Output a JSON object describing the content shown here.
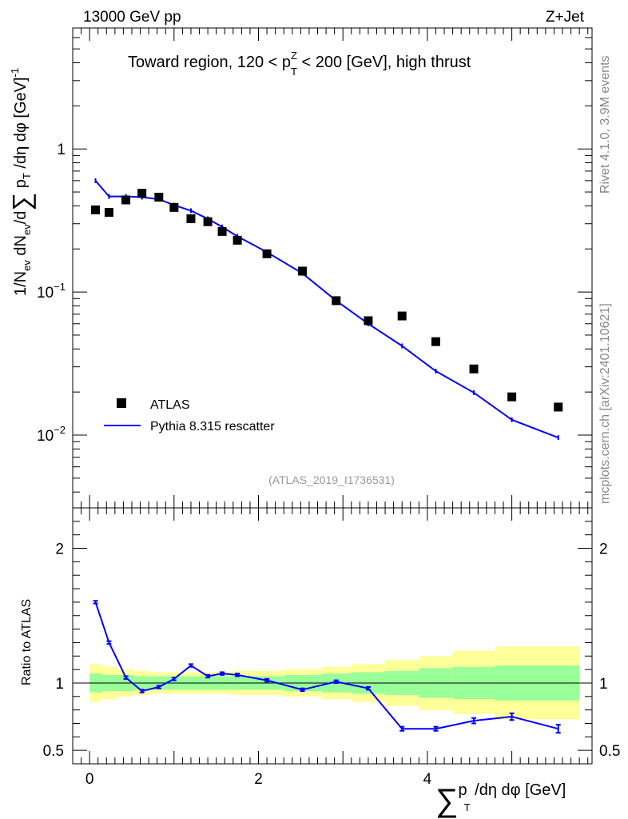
{
  "header": {
    "left": "13000 GeV pp",
    "right": "Z+Jet"
  },
  "title": {
    "prefix": "Toward region, 120 < p",
    "sup": "Z",
    "sub": "T",
    "suffix": " < 200 [GeV], high thrust"
  },
  "side": {
    "rivet": "Rivet 4.1.0,  3.9M events",
    "mcplots": "mcplots.cern.ch [arXiv:2401.10621]"
  },
  "analysis_id": "(ATLAS_2019_I1736531)",
  "upper_ylabel": {
    "a": "1/N",
    "a_sub": "ev",
    "b": " dN",
    "b_sub": "ev",
    "c": "/d",
    "sum": "∑",
    "d": " p",
    "d_sub": "T",
    "e": " /dη dφ  [GeV]",
    "e_sup": "-1"
  },
  "lower_ylabel": "Ratio to ATLAS",
  "xlabel": {
    "sum": "∑",
    "p": "p",
    "p_sub": "T",
    "rest": " /dη dφ [GeV]"
  },
  "legend": {
    "atlas": "ATLAS",
    "pythia": "Pythia 8.315 rescatter"
  },
  "colors": {
    "mc": "#0000ff",
    "data": "#000000",
    "band_inner": "#99ff99",
    "band_outer": "#ffff99"
  },
  "chart_data": [
    {
      "type": "scatter",
      "title": "Toward region, 120 < pT^Z < 200 [GeV], high thrust",
      "xlabel": "∑ pT /dη dφ [GeV]",
      "ylabel": "1/Nev dNev/d∑ pT /dη dφ [GeV]^-1",
      "yscale": "log",
      "xlim": [
        -0.2,
        5.95
      ],
      "ylim": [
        0.0031,
        7.0
      ],
      "x_ticks": [
        0,
        2,
        4
      ],
      "y_tick_labels": [
        {
          "v": 1,
          "text": "1"
        },
        {
          "v": 0.1,
          "base": "10",
          "exp": "−1"
        },
        {
          "v": 0.01,
          "base": "10",
          "exp": "−2"
        }
      ],
      "series": [
        {
          "name": "ATLAS",
          "x": [
            0.07,
            0.23,
            0.43,
            0.62,
            0.82,
            1.0,
            1.2,
            1.4,
            1.57,
            1.75,
            2.1,
            2.52,
            2.92,
            3.3,
            3.7,
            4.1,
            4.55,
            5.0,
            5.55
          ],
          "y": [
            0.375,
            0.36,
            0.44,
            0.49,
            0.46,
            0.39,
            0.325,
            0.31,
            0.265,
            0.23,
            0.185,
            0.14,
            0.087,
            0.063,
            0.068,
            0.045,
            0.029,
            0.0185,
            0.0157
          ]
        },
        {
          "name": "Pythia 8.315 rescatter",
          "x": [
            0.07,
            0.23,
            0.43,
            0.62,
            0.82,
            1.0,
            1.2,
            1.4,
            1.57,
            1.75,
            2.1,
            2.52,
            2.92,
            3.3,
            3.7,
            4.1,
            4.55,
            5.0,
            5.55
          ],
          "y": [
            0.6,
            0.465,
            0.465,
            0.46,
            0.445,
            0.405,
            0.37,
            0.325,
            0.285,
            0.245,
            0.19,
            0.135,
            0.087,
            0.06,
            0.042,
            0.028,
            0.0198,
            0.0128,
            0.0096
          ]
        }
      ]
    },
    {
      "type": "line",
      "title": "",
      "xlabel": "∑ pT /dη dφ [GeV]",
      "ylabel": "Ratio to ATLAS",
      "xlim": [
        -0.2,
        5.95
      ],
      "ylim": [
        0.4,
        2.3
      ],
      "y_ticks": [
        0.5,
        1,
        2
      ],
      "y_tick_labels": [
        "0.5",
        "1",
        "2"
      ],
      "reference_line": 1,
      "series": [
        {
          "name": "Pythia 8.315 rescatter / ATLAS",
          "x": [
            0.07,
            0.23,
            0.43,
            0.62,
            0.82,
            1.0,
            1.2,
            1.4,
            1.57,
            1.75,
            2.1,
            2.52,
            2.92,
            3.3,
            3.7,
            4.1,
            4.55,
            5.0,
            5.55
          ],
          "y": [
            1.6,
            1.3,
            1.04,
            0.94,
            0.97,
            1.03,
            1.13,
            1.05,
            1.07,
            1.06,
            1.02,
            0.95,
            1.01,
            0.96,
            0.66,
            0.66,
            0.72,
            0.75,
            0.66
          ],
          "err": [
            0.01,
            0.01,
            0.01,
            0.01,
            0.01,
            0.01,
            0.01,
            0.01,
            0.01,
            0.01,
            0.01,
            0.01,
            0.01,
            0.01,
            0.015,
            0.015,
            0.02,
            0.025,
            0.03
          ]
        }
      ],
      "bands": {
        "edges": [
          0.0,
          0.15,
          0.33,
          0.53,
          0.72,
          0.92,
          1.1,
          1.3,
          1.5,
          1.65,
          1.85,
          2.3,
          2.75,
          3.1,
          3.5,
          3.9,
          4.3,
          4.8,
          5.8
        ],
        "green_lo": [
          0.93,
          0.94,
          0.94,
          0.95,
          0.95,
          0.95,
          0.95,
          0.95,
          0.95,
          0.95,
          0.95,
          0.94,
          0.93,
          0.92,
          0.91,
          0.89,
          0.88,
          0.87,
          0.87
        ],
        "green_hi": [
          1.07,
          1.06,
          1.06,
          1.05,
          1.05,
          1.05,
          1.05,
          1.05,
          1.05,
          1.05,
          1.05,
          1.06,
          1.07,
          1.08,
          1.09,
          1.11,
          1.12,
          1.13,
          1.13
        ],
        "yellow_lo": [
          0.86,
          0.88,
          0.9,
          0.91,
          0.92,
          0.92,
          0.92,
          0.92,
          0.92,
          0.91,
          0.91,
          0.9,
          0.88,
          0.86,
          0.83,
          0.8,
          0.77,
          0.73,
          0.72
        ],
        "yellow_hi": [
          1.14,
          1.12,
          1.1,
          1.09,
          1.08,
          1.08,
          1.08,
          1.08,
          1.08,
          1.09,
          1.09,
          1.1,
          1.12,
          1.14,
          1.17,
          1.2,
          1.24,
          1.27,
          1.28
        ]
      }
    }
  ]
}
